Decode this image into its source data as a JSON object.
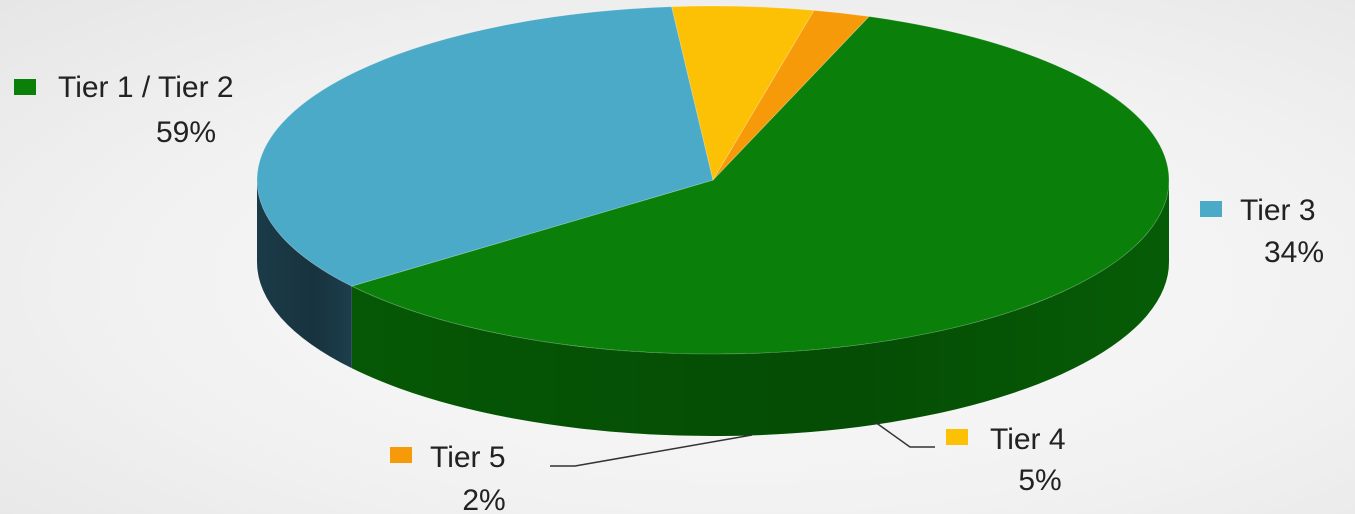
{
  "chart_data": {
    "type": "pie",
    "style": "3d",
    "legend": "none",
    "data_labels": "category name and percent",
    "slices": [
      {
        "label": "Tier 1 / Tier 2",
        "value": 59,
        "pct_text": "59%",
        "color": "#0a800a",
        "side_color": "#066106"
      },
      {
        "label": "Tier 3",
        "value": 34,
        "pct_text": "34%",
        "color": "#4baac8",
        "side_color": "#1e4150"
      },
      {
        "label": "Tier 4",
        "value": 5,
        "pct_text": "5%",
        "color": "#fcc004",
        "side_color": "#8a6a08"
      },
      {
        "label": "Tier 5",
        "value": 2,
        "pct_text": "2%",
        "color": "#f79a0a",
        "side_color": "#8a4a08"
      }
    ]
  }
}
